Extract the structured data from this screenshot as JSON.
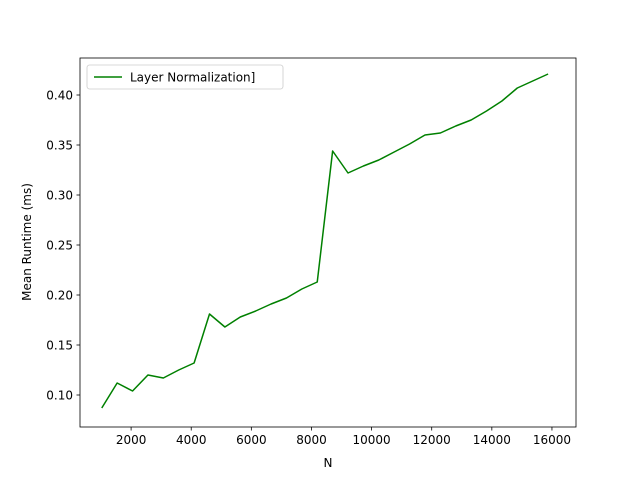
{
  "chart_data": {
    "type": "line",
    "title": "",
    "xlabel": "N",
    "ylabel": "Mean Runtime (ms)",
    "xlim": [
      300,
      16800
    ],
    "ylim": [
      0.068,
      0.437
    ],
    "xticks": [
      2000,
      4000,
      6000,
      8000,
      10000,
      12000,
      14000,
      16000
    ],
    "yticks": [
      0.1,
      0.15,
      0.2,
      0.25,
      0.3,
      0.35,
      0.4
    ],
    "xtick_labels": [
      "2000",
      "4000",
      "6000",
      "8000",
      "10000",
      "12000",
      "14000",
      "16000"
    ],
    "ytick_labels": [
      "0.10",
      "0.15",
      "0.20",
      "0.25",
      "0.30",
      "0.35",
      "0.40"
    ],
    "grid": false,
    "legend": "top-left",
    "series": [
      {
        "name": "Layer Normalization]",
        "color": "#008000",
        "x": [
          1024,
          1536,
          2048,
          2560,
          3072,
          3584,
          4096,
          4608,
          5120,
          5632,
          6144,
          6656,
          7168,
          7680,
          8192,
          8704,
          9216,
          9728,
          10240,
          10752,
          11264,
          11776,
          12288,
          12800,
          13312,
          13824,
          14336,
          14848,
          15360,
          15872
        ],
        "values": [
          0.087,
          0.112,
          0.104,
          0.12,
          0.117,
          0.125,
          0.132,
          0.181,
          0.168,
          0.178,
          0.184,
          0.191,
          0.197,
          0.206,
          0.213,
          0.344,
          0.322,
          0.329,
          0.335,
          0.343,
          0.351,
          0.36,
          0.362,
          0.369,
          0.375,
          0.384,
          0.394,
          0.407,
          0.414,
          0.421
        ]
      }
    ]
  }
}
